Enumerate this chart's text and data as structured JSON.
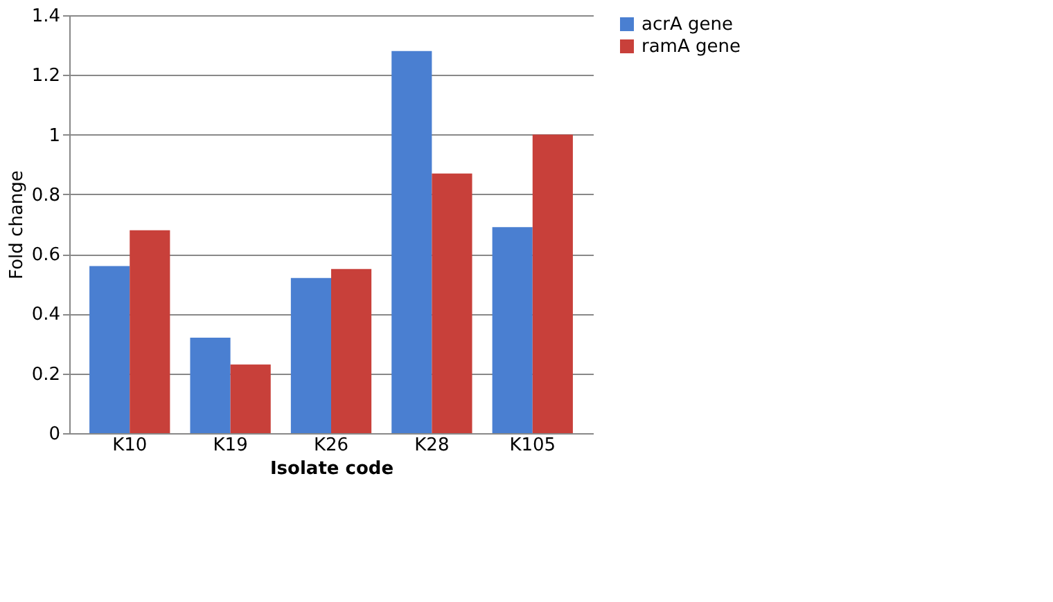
{
  "chart_data": {
    "type": "bar",
    "xlabel": "Isolate code",
    "ylabel": "Fold change",
    "categories": [
      "K10",
      "K19",
      "K26",
      "K28",
      "K105"
    ],
    "series": [
      {
        "name": "acrA gene",
        "color": "#4a7fd1",
        "values": [
          0.56,
          0.32,
          0.52,
          1.28,
          0.69
        ]
      },
      {
        "name": "ramA gene",
        "color": "#c8403a",
        "values": [
          0.68,
          0.23,
          0.55,
          0.87,
          1.0
        ]
      }
    ],
    "ylim": [
      0,
      1.4
    ],
    "yticks": [
      0,
      0.2,
      0.4,
      0.6,
      0.8,
      1,
      1.2,
      1.4
    ],
    "grid": "y",
    "legend": "right"
  }
}
